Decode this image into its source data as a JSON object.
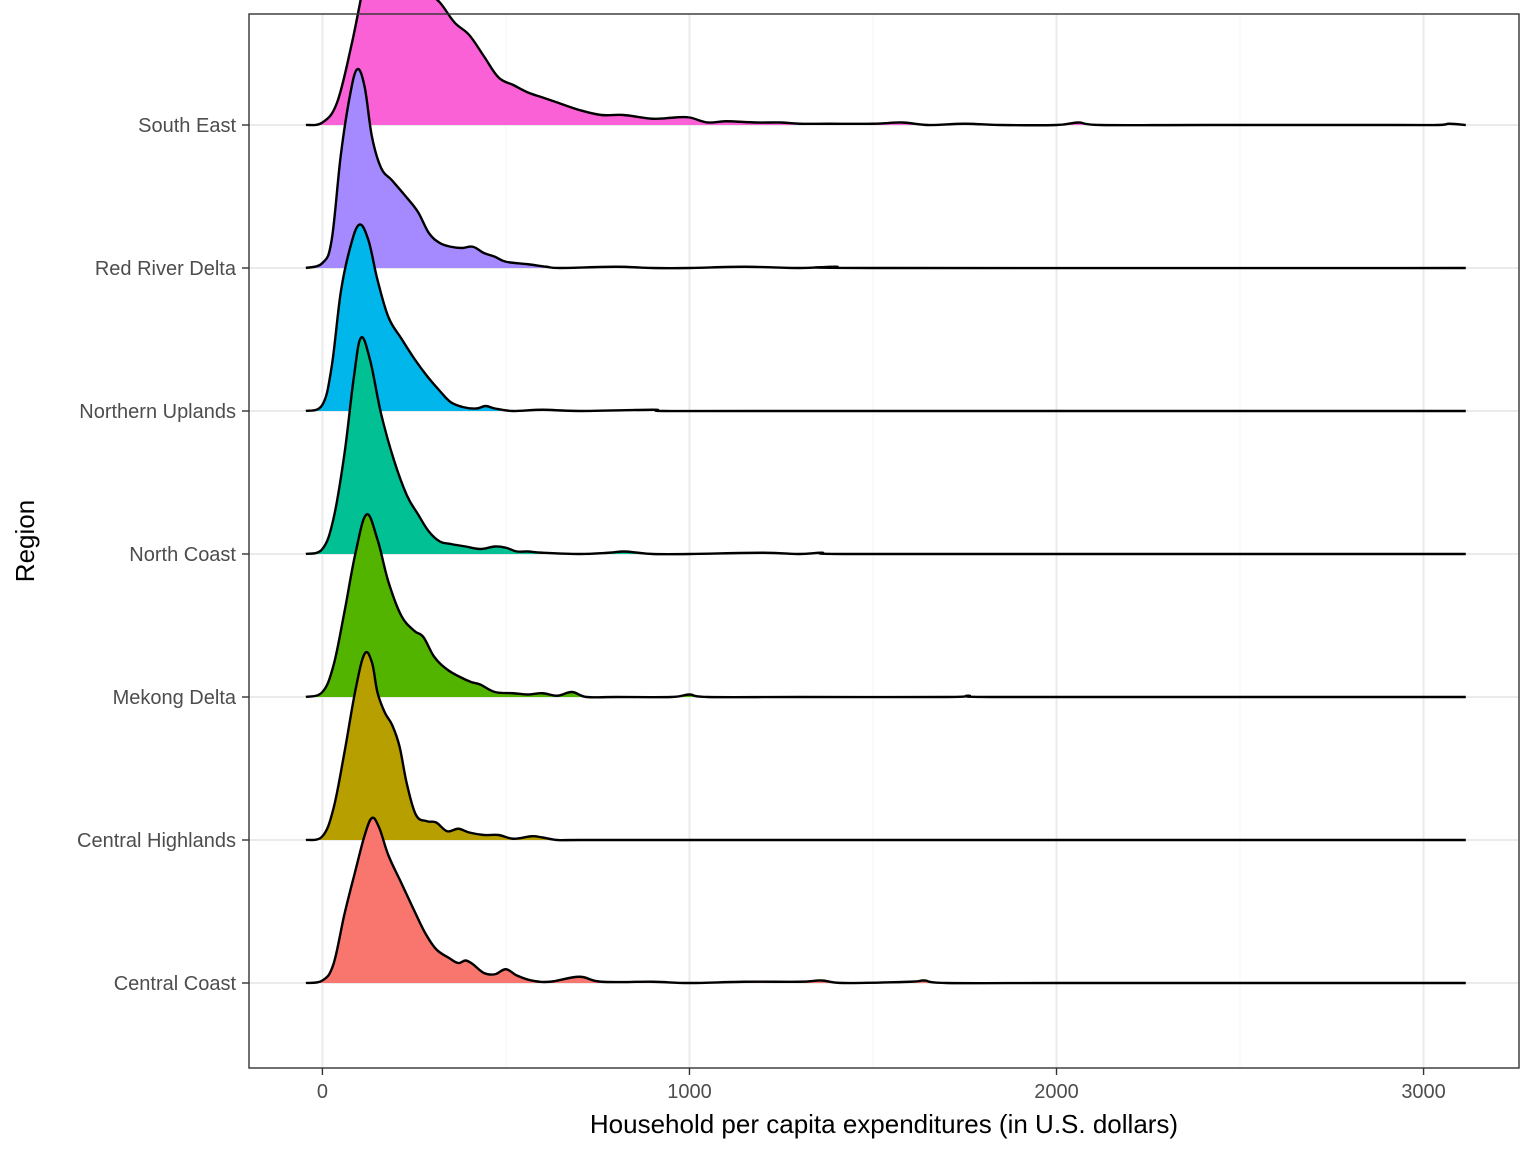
{
  "chart_data": {
    "type": "area",
    "subtype": "ridgeline-density",
    "title": "",
    "xlabel": "Household per capita expenditures (in U.S. dollars)",
    "ylabel": "Region",
    "xlim": [
      -200,
      3260
    ],
    "x_ticks": [
      0,
      1000,
      2000,
      3000
    ],
    "x_tick_labels": [
      "0",
      "1000",
      "2000",
      "3000"
    ],
    "grid": true,
    "legend": "none",
    "density_range": [
      -45,
      3115
    ],
    "series": [
      {
        "name": "Central Coast",
        "color": "#F8766D",
        "peak_height": 1.32,
        "points": [
          [
            -45,
            0
          ],
          [
            0,
            0.02
          ],
          [
            30,
            0.15
          ],
          [
            60,
            0.55
          ],
          [
            90,
            0.9
          ],
          [
            115,
            1.18
          ],
          [
            135,
            1.32
          ],
          [
            155,
            1.24
          ],
          [
            180,
            1.02
          ],
          [
            215,
            0.8
          ],
          [
            250,
            0.58
          ],
          [
            280,
            0.4
          ],
          [
            310,
            0.27
          ],
          [
            345,
            0.2
          ],
          [
            370,
            0.16
          ],
          [
            390,
            0.18
          ],
          [
            410,
            0.15
          ],
          [
            440,
            0.08
          ],
          [
            470,
            0.07
          ],
          [
            500,
            0.11
          ],
          [
            530,
            0.06
          ],
          [
            570,
            0.02
          ],
          [
            620,
            0.01
          ],
          [
            700,
            0.05
          ],
          [
            760,
            0.01
          ],
          [
            900,
            0.01
          ],
          [
            1000,
            0.0
          ],
          [
            1150,
            0.01
          ],
          [
            1300,
            0.01
          ],
          [
            1360,
            0.02
          ],
          [
            1420,
            0.0
          ],
          [
            1600,
            0.01
          ],
          [
            1640,
            0.02
          ],
          [
            1700,
            0.0
          ],
          [
            2000,
            0.0
          ],
          [
            2400,
            0.0
          ],
          [
            3000,
            0.0
          ],
          [
            3115,
            0.0
          ]
        ]
      },
      {
        "name": "Central Highlands",
        "color": "#B79F00",
        "peak_height": 1.49,
        "points": [
          [
            -45,
            0
          ],
          [
            0,
            0.03
          ],
          [
            30,
            0.25
          ],
          [
            60,
            0.7
          ],
          [
            90,
            1.2
          ],
          [
            115,
            1.49
          ],
          [
            135,
            1.42
          ],
          [
            150,
            1.18
          ],
          [
            170,
            1.02
          ],
          [
            190,
            0.92
          ],
          [
            210,
            0.75
          ],
          [
            230,
            0.45
          ],
          [
            255,
            0.2
          ],
          [
            285,
            0.15
          ],
          [
            310,
            0.14
          ],
          [
            340,
            0.07
          ],
          [
            370,
            0.09
          ],
          [
            400,
            0.06
          ],
          [
            440,
            0.04
          ],
          [
            480,
            0.04
          ],
          [
            520,
            0.01
          ],
          [
            570,
            0.03
          ],
          [
            600,
            0.02
          ],
          [
            640,
            0.0
          ],
          [
            700,
            0.0
          ],
          [
            1000,
            0.0
          ],
          [
            2000,
            0.0
          ],
          [
            3115,
            0.0
          ]
        ]
      },
      {
        "name": "Mekong Delta",
        "color": "#53B400",
        "peak_height": 1.46,
        "points": [
          [
            -45,
            0
          ],
          [
            0,
            0.04
          ],
          [
            30,
            0.25
          ],
          [
            60,
            0.68
          ],
          [
            90,
            1.15
          ],
          [
            120,
            1.46
          ],
          [
            150,
            1.26
          ],
          [
            180,
            0.92
          ],
          [
            215,
            0.65
          ],
          [
            250,
            0.53
          ],
          [
            275,
            0.48
          ],
          [
            305,
            0.32
          ],
          [
            340,
            0.22
          ],
          [
            375,
            0.16
          ],
          [
            405,
            0.12
          ],
          [
            430,
            0.1
          ],
          [
            470,
            0.04
          ],
          [
            520,
            0.03
          ],
          [
            560,
            0.02
          ],
          [
            600,
            0.03
          ],
          [
            640,
            0.01
          ],
          [
            680,
            0.04
          ],
          [
            720,
            0.0
          ],
          [
            800,
            0.0
          ],
          [
            950,
            0.0
          ],
          [
            1000,
            0.02
          ],
          [
            1050,
            0.0
          ],
          [
            1300,
            0.0
          ],
          [
            1700,
            0.0
          ],
          [
            1760,
            0.01
          ],
          [
            1820,
            0.0
          ],
          [
            2400,
            0.0
          ],
          [
            3115,
            0.0
          ]
        ]
      },
      {
        "name": "North Coast",
        "color": "#00C094",
        "peak_height": 1.73,
        "points": [
          [
            -45,
            0
          ],
          [
            0,
            0.04
          ],
          [
            30,
            0.28
          ],
          [
            60,
            0.8
          ],
          [
            85,
            1.4
          ],
          [
            105,
            1.73
          ],
          [
            130,
            1.55
          ],
          [
            160,
            1.12
          ],
          [
            195,
            0.75
          ],
          [
            230,
            0.47
          ],
          [
            260,
            0.32
          ],
          [
            290,
            0.18
          ],
          [
            320,
            0.1
          ],
          [
            350,
            0.08
          ],
          [
            390,
            0.06
          ],
          [
            430,
            0.04
          ],
          [
            470,
            0.06
          ],
          [
            500,
            0.05
          ],
          [
            530,
            0.02
          ],
          [
            560,
            0.02
          ],
          [
            600,
            0.01
          ],
          [
            700,
            0.0
          ],
          [
            780,
            0.01
          ],
          [
            820,
            0.02
          ],
          [
            860,
            0.01
          ],
          [
            900,
            0.0
          ],
          [
            1000,
            0.0
          ],
          [
            1200,
            0.01
          ],
          [
            1300,
            0.0
          ],
          [
            1360,
            0.01
          ],
          [
            1420,
            0.0
          ],
          [
            2000,
            0.0
          ],
          [
            3115,
            0.0
          ]
        ]
      },
      {
        "name": "Northern Uplands",
        "color": "#00B6EB",
        "peak_height": 1.49,
        "points": [
          [
            -45,
            0
          ],
          [
            0,
            0.05
          ],
          [
            25,
            0.35
          ],
          [
            50,
            0.95
          ],
          [
            75,
            1.3
          ],
          [
            100,
            1.49
          ],
          [
            125,
            1.37
          ],
          [
            150,
            1.05
          ],
          [
            180,
            0.75
          ],
          [
            215,
            0.58
          ],
          [
            250,
            0.42
          ],
          [
            285,
            0.28
          ],
          [
            320,
            0.16
          ],
          [
            350,
            0.07
          ],
          [
            385,
            0.03
          ],
          [
            420,
            0.02
          ],
          [
            445,
            0.04
          ],
          [
            470,
            0.02
          ],
          [
            520,
            0.0
          ],
          [
            600,
            0.01
          ],
          [
            700,
            0.0
          ],
          [
            900,
            0.01
          ],
          [
            930,
            0.0
          ],
          [
            1200,
            0.0
          ],
          [
            2000,
            0.0
          ],
          [
            3115,
            0.0
          ]
        ]
      },
      {
        "name": "Red River Delta",
        "color": "#A58AFF",
        "peak_height": 1.59,
        "points": [
          [
            -45,
            0
          ],
          [
            0,
            0.04
          ],
          [
            25,
            0.22
          ],
          [
            50,
            0.9
          ],
          [
            75,
            1.38
          ],
          [
            95,
            1.59
          ],
          [
            115,
            1.45
          ],
          [
            135,
            1.05
          ],
          [
            160,
            0.8
          ],
          [
            190,
            0.7
          ],
          [
            225,
            0.58
          ],
          [
            260,
            0.45
          ],
          [
            290,
            0.28
          ],
          [
            320,
            0.2
          ],
          [
            350,
            0.17
          ],
          [
            380,
            0.16
          ],
          [
            410,
            0.17
          ],
          [
            440,
            0.12
          ],
          [
            470,
            0.09
          ],
          [
            500,
            0.05
          ],
          [
            560,
            0.03
          ],
          [
            610,
            0.01
          ],
          [
            650,
            0.0
          ],
          [
            800,
            0.01
          ],
          [
            900,
            0.0
          ],
          [
            1000,
            0.0
          ],
          [
            1150,
            0.01
          ],
          [
            1300,
            0.0
          ],
          [
            1400,
            0.01
          ],
          [
            1500,
            0.0
          ],
          [
            3115,
            0.0
          ]
        ]
      },
      {
        "name": "South East",
        "color": "#FB61D7",
        "peak_height": 1.55,
        "points": [
          [
            -45,
            0
          ],
          [
            0,
            0.02
          ],
          [
            40,
            0.18
          ],
          [
            80,
            0.65
          ],
          [
            115,
            1.15
          ],
          [
            145,
            1.45
          ],
          [
            170,
            1.55
          ],
          [
            200,
            1.45
          ],
          [
            240,
            1.22
          ],
          [
            280,
            1.08
          ],
          [
            320,
            0.98
          ],
          [
            360,
            0.82
          ],
          [
            400,
            0.72
          ],
          [
            440,
            0.55
          ],
          [
            480,
            0.38
          ],
          [
            520,
            0.32
          ],
          [
            560,
            0.26
          ],
          [
            600,
            0.22
          ],
          [
            640,
            0.18
          ],
          [
            700,
            0.12
          ],
          [
            760,
            0.08
          ],
          [
            820,
            0.08
          ],
          [
            900,
            0.05
          ],
          [
            960,
            0.06
          ],
          [
            1000,
            0.06
          ],
          [
            1050,
            0.02
          ],
          [
            1100,
            0.03
          ],
          [
            1180,
            0.02
          ],
          [
            1250,
            0.02
          ],
          [
            1300,
            0.01
          ],
          [
            1380,
            0.01
          ],
          [
            1500,
            0.01
          ],
          [
            1580,
            0.02
          ],
          [
            1650,
            0.0
          ],
          [
            1750,
            0.01
          ],
          [
            1850,
            0.0
          ],
          [
            2000,
            0.0
          ],
          [
            2060,
            0.02
          ],
          [
            2120,
            0.0
          ],
          [
            2400,
            0.0
          ],
          [
            2900,
            0.0
          ],
          [
            3040,
            0.0
          ],
          [
            3070,
            0.01
          ],
          [
            3115,
            0.0
          ]
        ]
      }
    ]
  }
}
